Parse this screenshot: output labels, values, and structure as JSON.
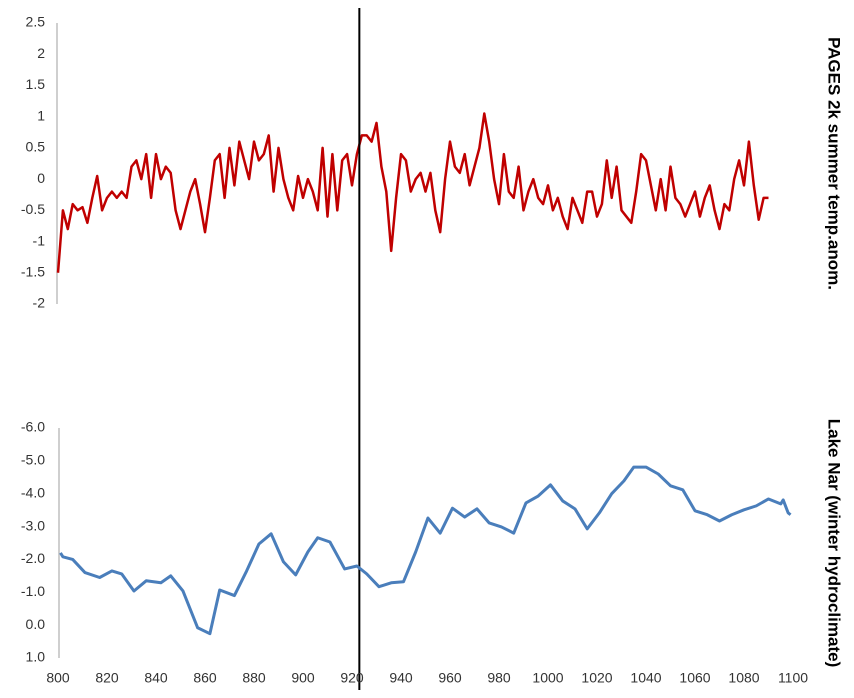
{
  "chart_data": [
    {
      "type": "line",
      "ylabel": "PAGES 2k summer temp.anom.",
      "xlim": [
        800,
        1100
      ],
      "ylim": [
        -2,
        2.5
      ],
      "yticks": [
        -2,
        -1.5,
        -1,
        -0.5,
        0,
        0.5,
        1,
        1.5,
        2,
        2.5
      ],
      "vlines": [
        923
      ],
      "x": [
        800,
        802,
        804,
        806,
        808,
        810,
        812,
        814,
        816,
        818,
        820,
        822,
        824,
        826,
        828,
        830,
        832,
        834,
        836,
        838,
        840,
        842,
        844,
        846,
        848,
        850,
        852,
        854,
        856,
        858,
        860,
        862,
        864,
        866,
        868,
        870,
        872,
        874,
        876,
        878,
        880,
        882,
        884,
        886,
        888,
        890,
        892,
        894,
        896,
        898,
        900,
        902,
        904,
        906,
        908,
        910,
        912,
        914,
        916,
        918,
        920,
        922,
        924,
        926,
        928,
        930,
        932,
        934,
        936,
        938,
        940,
        942,
        944,
        946,
        948,
        950,
        952,
        954,
        956,
        958,
        960,
        962,
        964,
        966,
        968,
        970,
        972,
        974,
        976,
        978,
        980,
        982,
        984,
        986,
        988,
        990,
        992,
        994,
        996,
        998,
        1000,
        1002,
        1004,
        1006,
        1008,
        1010,
        1012,
        1014,
        1016,
        1018,
        1020,
        1022,
        1024,
        1026,
        1028,
        1030,
        1032,
        1034,
        1036,
        1038,
        1040,
        1042,
        1044,
        1046,
        1048,
        1050,
        1052,
        1054,
        1056,
        1058,
        1060,
        1062,
        1064,
        1066,
        1068,
        1070,
        1072,
        1074,
        1076,
        1078,
        1080,
        1082,
        1084,
        1086,
        1088,
        1090
      ],
      "series": [
        {
          "color": "#c00000",
          "values": [
            -1.5,
            -0.5,
            -0.8,
            -0.4,
            -0.5,
            -0.45,
            -0.7,
            -0.3,
            0.05,
            -0.5,
            -0.3,
            -0.2,
            -0.3,
            -0.2,
            -0.3,
            0.2,
            0.3,
            0.0,
            0.4,
            -0.3,
            0.4,
            0.0,
            0.2,
            0.1,
            -0.5,
            -0.8,
            -0.5,
            -0.2,
            0.0,
            -0.4,
            -0.85,
            -0.3,
            0.3,
            0.4,
            -0.3,
            0.5,
            -0.1,
            0.6,
            0.3,
            0.0,
            0.6,
            0.3,
            0.4,
            0.7,
            -0.2,
            0.5,
            0.0,
            -0.3,
            -0.5,
            0.05,
            -0.3,
            0.0,
            -0.2,
            -0.5,
            0.5,
            -0.6,
            0.4,
            -0.5,
            0.3,
            0.4,
            -0.1,
            0.4,
            0.7,
            0.7,
            0.6,
            0.9,
            0.2,
            -0.2,
            -1.15,
            -0.3,
            0.4,
            0.3,
            -0.2,
            0.0,
            0.1,
            -0.2,
            0.1,
            -0.5,
            -0.85,
            0.0,
            0.6,
            0.2,
            0.1,
            0.4,
            -0.1,
            0.2,
            0.5,
            1.05,
            0.6,
            0.0,
            -0.4,
            0.4,
            -0.2,
            -0.3,
            0.2,
            -0.5,
            -0.2,
            0.0,
            -0.3,
            -0.4,
            -0.1,
            -0.5,
            -0.3,
            -0.6,
            -0.8,
            -0.3,
            -0.5,
            -0.7,
            -0.2,
            -0.2,
            -0.6,
            -0.4,
            0.3,
            -0.3,
            0.2,
            -0.5,
            -0.6,
            -0.7,
            -0.2,
            0.4,
            0.3,
            -0.1,
            -0.5,
            0.0,
            -0.5,
            0.2,
            -0.3,
            -0.4,
            -0.6,
            -0.4,
            -0.2,
            -0.6,
            -0.3,
            -0.1,
            -0.5,
            -0.8,
            -0.4,
            -0.5,
            0.0,
            0.3,
            -0.1,
            0.6,
            -0.1,
            -0.65,
            -0.3,
            -0.3
          ]
        }
      ]
    },
    {
      "type": "line",
      "ylabel": "Lake Nar (winter hydroclimate)",
      "xlim": [
        800,
        1100
      ],
      "xticks": [
        800,
        820,
        840,
        860,
        880,
        900,
        920,
        940,
        960,
        980,
        1000,
        1020,
        1040,
        1060,
        1080,
        1100
      ],
      "ylim": [
        1,
        -6
      ],
      "yticks": [
        {
          "value": -6,
          "label": "-6.0"
        },
        {
          "value": -5,
          "label": "-5.0"
        },
        {
          "value": -4,
          "label": "-4.0"
        },
        {
          "value": -3,
          "label": "-3.0"
        },
        {
          "value": -2,
          "label": "-2.0"
        },
        {
          "value": -1,
          "label": "-1.0"
        },
        {
          "value": 0,
          "label": "0.0"
        },
        {
          "value": 1,
          "label": "1.0"
        }
      ],
      "x": [
        801,
        802,
        806,
        811,
        817,
        822,
        826,
        831,
        836,
        842,
        846,
        851,
        857,
        862,
        866,
        872,
        877,
        882,
        887,
        892,
        897,
        902,
        906,
        911,
        917,
        922,
        926,
        931,
        936,
        941,
        946,
        951,
        956,
        961,
        966,
        971,
        976,
        981,
        986,
        991,
        996,
        1001,
        1006,
        1011,
        1016,
        1021,
        1026,
        1031,
        1035,
        1040,
        1045,
        1050,
        1055,
        1060,
        1065,
        1070,
        1075,
        1080,
        1085,
        1090,
        1095,
        1096,
        1098,
        1099
      ],
      "series": [
        {
          "color": "#4a7ebb",
          "values": [
            -2.2,
            -2.08,
            -2.0,
            -1.6,
            -1.45,
            -1.65,
            -1.56,
            -1.04,
            -1.35,
            -1.29,
            -1.5,
            -1.04,
            0.08,
            0.26,
            -1.07,
            -0.9,
            -1.65,
            -2.47,
            -2.78,
            -1.93,
            -1.53,
            -2.23,
            -2.66,
            -2.53,
            -1.71,
            -1.8,
            -1.56,
            -1.17,
            -1.29,
            -1.32,
            -2.23,
            -3.26,
            -2.8,
            -3.56,
            -3.29,
            -3.54,
            -3.11,
            -2.99,
            -2.8,
            -3.72,
            -3.93,
            -4.27,
            -3.78,
            -3.54,
            -2.93,
            -3.42,
            -4.0,
            -4.39,
            -4.81,
            -4.81,
            -4.6,
            -4.24,
            -4.12,
            -3.48,
            -3.36,
            -3.17,
            -3.36,
            -3.51,
            -3.63,
            -3.84,
            -3.69,
            -3.81,
            -3.42,
            -3.36
          ]
        }
      ]
    }
  ]
}
